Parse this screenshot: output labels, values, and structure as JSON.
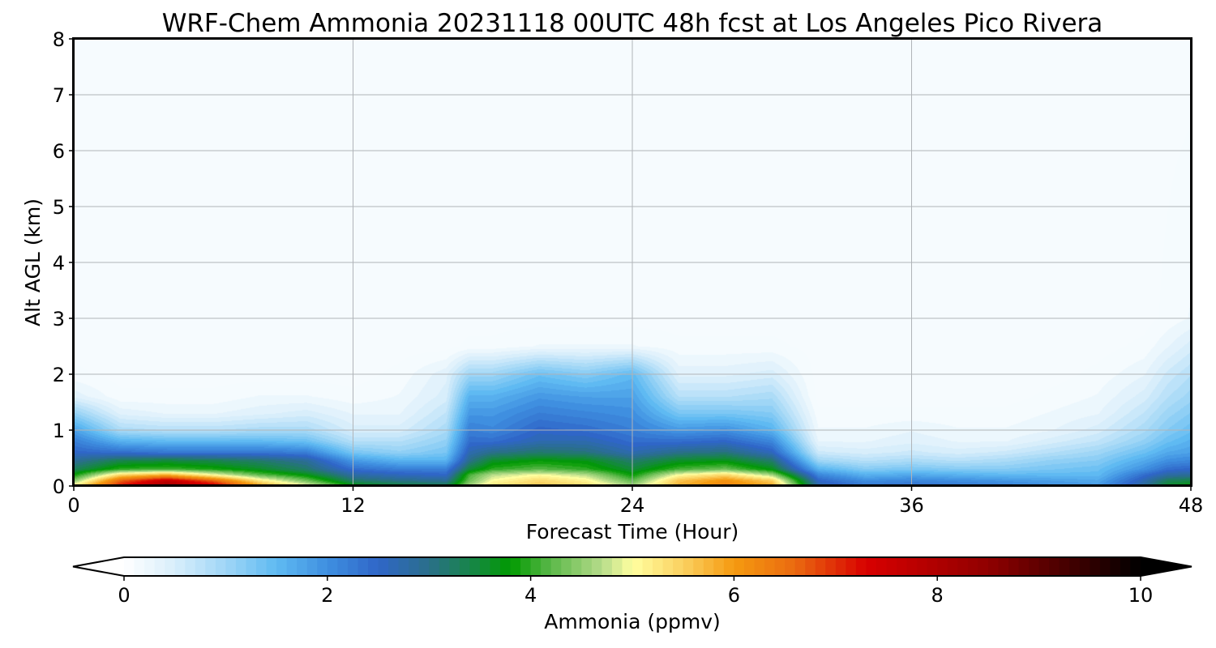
{
  "chart_data": {
    "type": "heatmap",
    "title": "WRF-Chem Ammonia  20231118 00UTC 48h fcst at Los Angeles Pico Rivera",
    "xlabel": "Forecast Time (Hour)",
    "ylabel": "Alt AGL (km)",
    "xlim": [
      0,
      48
    ],
    "ylim": [
      0,
      8
    ],
    "x_ticks": [
      "0",
      "12",
      "24",
      "36",
      "48"
    ],
    "y_ticks": [
      "0",
      "1",
      "2",
      "3",
      "4",
      "5",
      "6",
      "7",
      "8"
    ],
    "grid": true,
    "colorbar": {
      "label": "Ammonia  (ppmv)",
      "range": [
        0,
        10
      ],
      "ticks": [
        "0",
        "2",
        "4",
        "6",
        "8",
        "10"
      ],
      "extend": "both",
      "stops": [
        {
          "value": 0,
          "color": "#ffffff"
        },
        {
          "value": 0.5,
          "color": "#d8eefb"
        },
        {
          "value": 1.0,
          "color": "#9fd6f6"
        },
        {
          "value": 1.5,
          "color": "#5fbaf2"
        },
        {
          "value": 2.0,
          "color": "#3f8fe0"
        },
        {
          "value": 2.5,
          "color": "#2f66c8"
        },
        {
          "value": 3.0,
          "color": "#2a6f8a"
        },
        {
          "value": 3.5,
          "color": "#138a3a"
        },
        {
          "value": 3.8,
          "color": "#009a00"
        },
        {
          "value": 4.2,
          "color": "#5cb84a"
        },
        {
          "value": 4.7,
          "color": "#b6dc8a"
        },
        {
          "value": 5.0,
          "color": "#ffffa0"
        },
        {
          "value": 5.5,
          "color": "#fbd060"
        },
        {
          "value": 6.0,
          "color": "#f59a10"
        },
        {
          "value": 6.6,
          "color": "#ea6a10"
        },
        {
          "value": 7.3,
          "color": "#d80000"
        },
        {
          "value": 8.5,
          "color": "#900000"
        },
        {
          "value": 10.0,
          "color": "#000000"
        }
      ]
    },
    "x_hours": [
      0,
      2,
      4,
      6,
      8,
      10,
      12,
      14,
      16,
      17,
      18,
      20,
      22,
      24,
      26,
      28,
      30,
      32,
      34,
      36,
      38,
      40,
      42,
      44,
      46,
      47,
      48
    ],
    "altitudes_km": [
      0,
      0.1,
      0.2,
      0.3,
      0.45,
      0.6,
      0.8,
      1.0,
      1.3,
      1.6,
      2.0,
      2.5,
      3.0,
      8.0
    ],
    "values_ppmv": [
      [
        5.2,
        7.2,
        8.4,
        7.6,
        6.0,
        5.0,
        3.8,
        3.5,
        3.4,
        4.6,
        5.3,
        5.6,
        5.4,
        4.6,
        5.8,
        6.3,
        5.9,
        2.8,
        2.3,
        2.4,
        2.3,
        2.2,
        2.0,
        1.9,
        2.9,
        3.6,
        3.8
      ],
      [
        4.4,
        6.6,
        7.6,
        6.6,
        5.2,
        4.3,
        3.2,
        3.0,
        2.9,
        4.3,
        5.0,
        5.4,
        5.1,
        4.2,
        5.6,
        6.1,
        5.5,
        2.5,
        2.0,
        2.1,
        2.0,
        1.9,
        1.8,
        1.7,
        2.7,
        3.3,
        3.4
      ],
      [
        3.8,
        5.4,
        5.8,
        5.0,
        4.2,
        3.7,
        2.8,
        2.6,
        2.5,
        4.1,
        4.7,
        5.0,
        4.7,
        3.8,
        5.0,
        5.4,
        4.6,
        2.1,
        1.6,
        1.7,
        1.6,
        1.5,
        1.5,
        1.5,
        2.4,
        2.8,
        2.9
      ],
      [
        3.3,
        4.0,
        4.1,
        3.9,
        3.6,
        3.2,
        2.4,
        2.2,
        2.2,
        3.5,
        4.0,
        4.2,
        4.0,
        3.5,
        4.1,
        4.3,
        3.7,
        1.6,
        1.2,
        1.3,
        1.2,
        1.2,
        1.3,
        1.4,
        2.0,
        2.4,
        2.5
      ],
      [
        2.9,
        3.4,
        3.5,
        3.4,
        3.2,
        2.9,
        1.9,
        1.6,
        1.6,
        3.0,
        3.6,
        3.8,
        3.7,
        3.2,
        3.6,
        3.7,
        3.2,
        1.0,
        0.8,
        0.9,
        0.8,
        0.9,
        1.1,
        1.2,
        1.7,
        2.0,
        2.1
      ],
      [
        2.5,
        2.4,
        2.3,
        2.3,
        2.3,
        2.2,
        1.3,
        1.1,
        1.3,
        2.7,
        3.0,
        3.2,
        3.1,
        2.7,
        3.0,
        3.1,
        2.6,
        0.6,
        0.5,
        0.6,
        0.5,
        0.6,
        0.8,
        1.0,
        1.4,
        1.7,
        1.8
      ],
      [
        2.2,
        1.6,
        1.5,
        1.5,
        1.5,
        1.4,
        0.8,
        0.8,
        1.1,
        2.4,
        2.4,
        2.7,
        2.7,
        2.4,
        2.4,
        2.5,
        2.1,
        0.3,
        0.3,
        0.4,
        0.3,
        0.3,
        0.5,
        0.7,
        1.1,
        1.4,
        1.6
      ],
      [
        1.8,
        0.9,
        0.8,
        0.8,
        0.9,
        0.9,
        0.5,
        0.5,
        0.9,
        2.2,
        2.1,
        2.5,
        2.4,
        2.2,
        1.9,
        2.0,
        1.6,
        0.2,
        0.2,
        0.3,
        0.2,
        0.2,
        0.3,
        0.5,
        0.9,
        1.2,
        1.4
      ],
      [
        1.1,
        0.4,
        0.3,
        0.3,
        0.4,
        0.5,
        0.3,
        0.3,
        0.7,
        1.9,
        1.9,
        2.2,
        2.1,
        2.0,
        1.3,
        1.3,
        1.2,
        0.1,
        0.1,
        0.1,
        0.1,
        0.1,
        0.2,
        0.3,
        0.7,
        1.0,
        1.2
      ],
      [
        0.4,
        0.1,
        0.1,
        0.1,
        0.2,
        0.2,
        0.1,
        0.2,
        0.5,
        1.6,
        1.6,
        1.9,
        1.8,
        1.8,
        0.8,
        0.8,
        0.9,
        0.0,
        0.0,
        0.0,
        0.0,
        0.0,
        0.1,
        0.2,
        0.5,
        0.8,
        1.0
      ],
      [
        0.1,
        0.0,
        0.0,
        0.0,
        0.0,
        0.0,
        0.0,
        0.1,
        0.4,
        1.0,
        1.0,
        1.4,
        1.2,
        1.5,
        0.4,
        0.4,
        0.5,
        0.0,
        0.0,
        0.0,
        0.0,
        0.0,
        0.0,
        0.1,
        0.3,
        0.6,
        0.8
      ],
      [
        0.0,
        0.0,
        0.0,
        0.0,
        0.0,
        0.0,
        0.0,
        0.0,
        0.0,
        0.1,
        0.1,
        0.2,
        0.2,
        0.2,
        0.1,
        0.1,
        0.1,
        0.0,
        0.0,
        0.0,
        0.0,
        0.0,
        0.0,
        0.0,
        0.1,
        0.3,
        0.5
      ],
      [
        0.0,
        0.0,
        0.0,
        0.0,
        0.0,
        0.0,
        0.0,
        0.0,
        0.0,
        0.0,
        0.0,
        0.0,
        0.0,
        0.0,
        0.0,
        0.0,
        0.0,
        0.0,
        0.0,
        0.0,
        0.0,
        0.0,
        0.0,
        0.0,
        0.0,
        0.1,
        0.2
      ],
      [
        0.0,
        0.0,
        0.0,
        0.0,
        0.0,
        0.0,
        0.0,
        0.0,
        0.0,
        0.0,
        0.0,
        0.0,
        0.0,
        0.0,
        0.0,
        0.0,
        0.0,
        0.0,
        0.0,
        0.0,
        0.0,
        0.0,
        0.0,
        0.0,
        0.0,
        0.0,
        0.0
      ]
    ]
  }
}
